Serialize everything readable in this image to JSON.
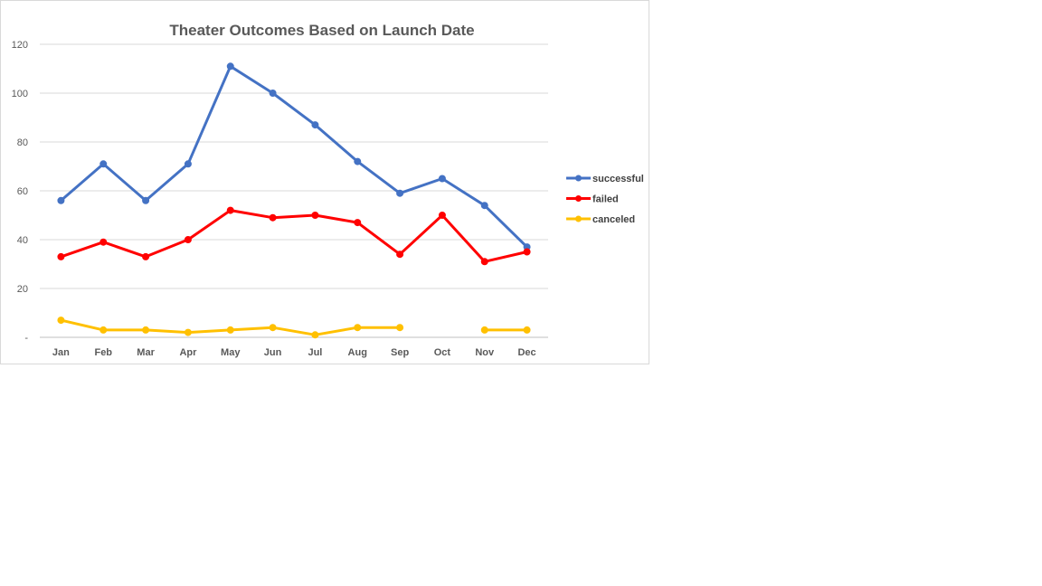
{
  "chart_data": {
    "type": "line",
    "title": "Theater Outcomes Based on Launch Date",
    "xlabel": "",
    "ylabel": "",
    "categories": [
      "Jan",
      "Feb",
      "Mar",
      "Apr",
      "May",
      "Jun",
      "Jul",
      "Aug",
      "Sep",
      "Oct",
      "Nov",
      "Dec"
    ],
    "ylim": [
      0,
      120
    ],
    "yticks": [
      0,
      20,
      40,
      60,
      80,
      100,
      120
    ],
    "ytick_labels": [
      "-",
      "20",
      "40",
      "60",
      "80",
      "100",
      "120"
    ],
    "grid": true,
    "legend_position": "right",
    "series": [
      {
        "name": "successful",
        "color": "#4472c4",
        "values": [
          56,
          71,
          56,
          71,
          111,
          100,
          87,
          72,
          59,
          65,
          54,
          37
        ]
      },
      {
        "name": "failed",
        "color": "#ff0000",
        "values": [
          33,
          39,
          33,
          40,
          52,
          49,
          50,
          47,
          34,
          50,
          31,
          35
        ]
      },
      {
        "name": "canceled",
        "color": "#ffc000",
        "values": [
          7,
          3,
          3,
          2,
          3,
          4,
          1,
          4,
          4,
          null,
          3,
          3
        ]
      }
    ]
  }
}
